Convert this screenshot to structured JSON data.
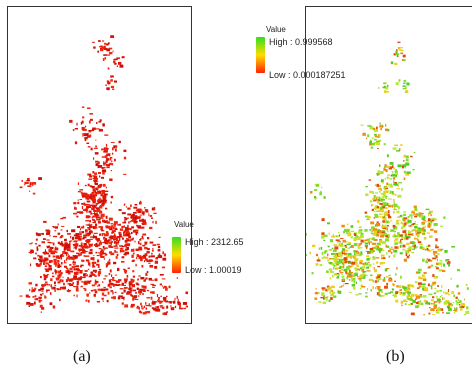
{
  "panels": [
    {
      "id": "a",
      "caption": "(a)",
      "legend": {
        "title": "Value",
        "high": "High : 2312.65",
        "low": "Low : 1.00019",
        "gradient": [
          "#33dd22",
          "#ffdd00",
          "#ff2200"
        ]
      },
      "pixel_palette": [
        "#e81a0c",
        "#dd1508",
        "#f2280e",
        "#c81008"
      ]
    },
    {
      "id": "b",
      "caption": "(b)",
      "legend": {
        "title": "Value",
        "high": "High : 0.999568",
        "low": "Low : 0.000187251",
        "gradient": [
          "#33dd22",
          "#ffdd00",
          "#ff2200"
        ]
      },
      "pixel_palette": [
        "#7fdc2a",
        "#b8e830",
        "#e6d020",
        "#f08a10",
        "#e04a0a",
        "#55cc22"
      ]
    }
  ]
}
